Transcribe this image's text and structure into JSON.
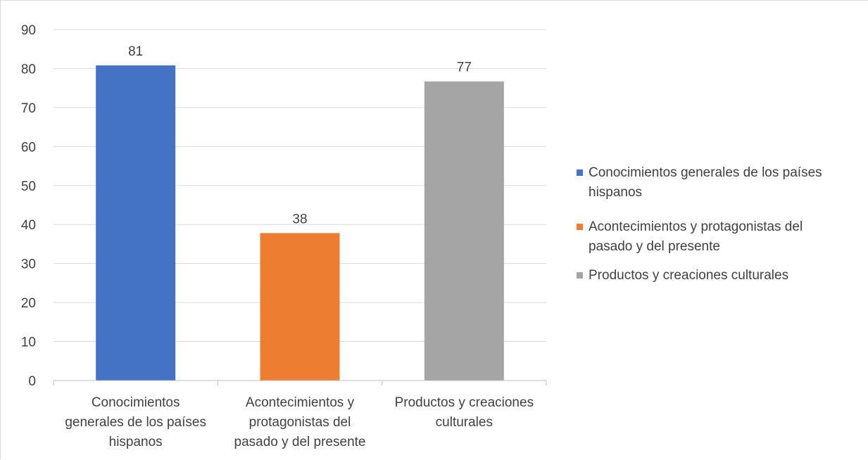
{
  "chart_data": {
    "type": "bar",
    "categories": [
      "Conocimientos generales de los países hispanos",
      "Acontecimientos y protagonistas del pasado y del presente",
      "Productos y creaciones culturales"
    ],
    "category_label_lines": [
      [
        "Conocimientos",
        "generales de los países",
        "hispanos"
      ],
      [
        "Acontecimientos y",
        "protagonistas del",
        "pasado y del presente"
      ],
      [
        "Productos y creaciones",
        "culturales"
      ]
    ],
    "values": [
      80.8,
      37.8,
      76.7
    ],
    "data_labels": [
      "81",
      "38",
      "77"
    ],
    "colors": [
      "#4472C4",
      "#ED7D31",
      "#A5A5A5"
    ],
    "ylim": [
      0,
      90
    ],
    "yticks": [
      0,
      10,
      20,
      30,
      40,
      50,
      60,
      70,
      80,
      90
    ],
    "ytick_labels": [
      "0",
      "10",
      "20",
      "30",
      "40",
      "50",
      "60",
      "70",
      "80",
      "90"
    ],
    "gridlines": true,
    "legend_position": "right",
    "legend": [
      {
        "lines": [
          "Conocimientos generales de los países",
          "hispanos"
        ],
        "color": "#4472C4"
      },
      {
        "lines": [
          "Acontecimientos y protagonistas del",
          "pasado y del presente"
        ],
        "color": "#ED7D31"
      },
      {
        "lines": [
          "Productos y creaciones culturales"
        ],
        "color": "#A5A5A5"
      }
    ],
    "title": "",
    "xlabel": "",
    "ylabel": "",
    "gridline_color": "#d9d9d9",
    "axis_color": "#bfbfbf",
    "text_color": "#404040"
  }
}
